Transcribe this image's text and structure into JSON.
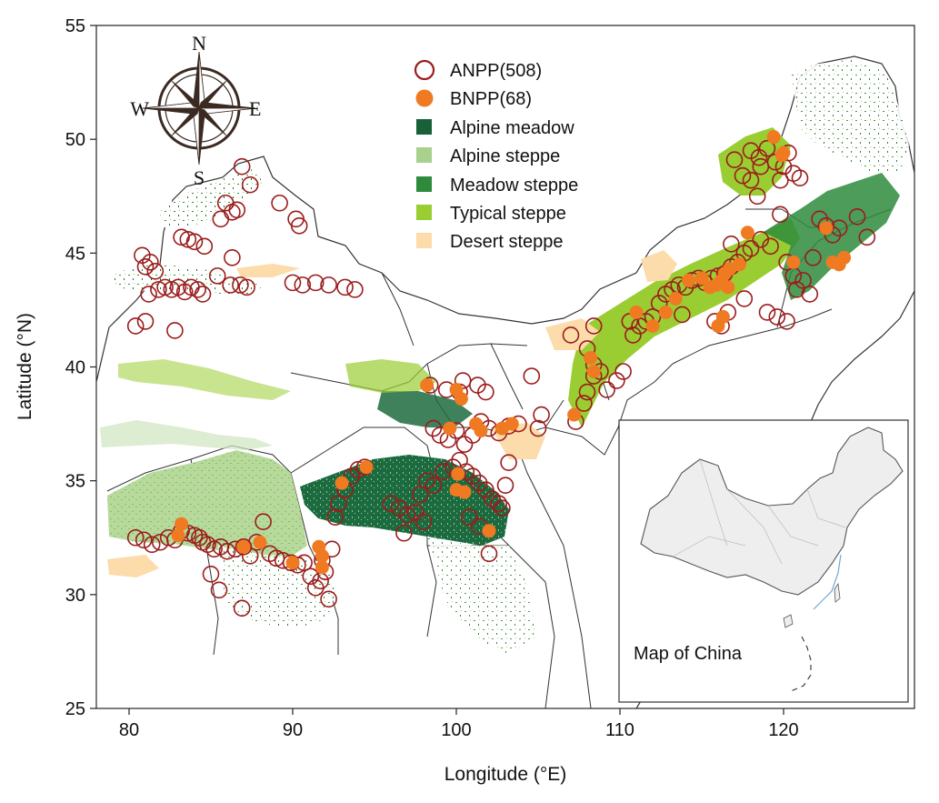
{
  "chart_data": {
    "type": "map",
    "xlabel": "Longitude (°E)",
    "ylabel": "Latitude (°N)",
    "xlim": [
      78,
      128
    ],
    "ylim": [
      25,
      55
    ],
    "xticks": [
      80,
      90,
      100,
      110,
      120
    ],
    "yticks": [
      25,
      30,
      35,
      40,
      45,
      50,
      55
    ],
    "legend": [
      {
        "label": "ANPP(508)",
        "marker": "open-circle",
        "color": "#9b1c1c"
      },
      {
        "label": "BNPP(68)",
        "marker": "filled-circle",
        "color": "#f07a22"
      },
      {
        "label": "Alpine meadow",
        "marker": "square",
        "color": "#17603a"
      },
      {
        "label": "Alpine steppe",
        "marker": "square",
        "color": "#a9d18e"
      },
      {
        "label": "Meadow steppe",
        "marker": "square",
        "color": "#2e8b3c"
      },
      {
        "label": "Typical steppe",
        "marker": "square",
        "color": "#9acd32"
      },
      {
        "label": "Desert steppe",
        "marker": "square",
        "color": "#fbdcaa"
      }
    ],
    "anpp_sites": [
      [
        80.4,
        41.8
      ],
      [
        80.8,
        44.9
      ],
      [
        81.0,
        44.4
      ],
      [
        81.3,
        44.6
      ],
      [
        81.6,
        44.2
      ],
      [
        81.2,
        43.2
      ],
      [
        81.8,
        43.4
      ],
      [
        82.2,
        43.5
      ],
      [
        82.6,
        43.4
      ],
      [
        83.0,
        43.5
      ],
      [
        83.4,
        43.3
      ],
      [
        83.8,
        43.5
      ],
      [
        84.2,
        43.4
      ],
      [
        84.5,
        43.2
      ],
      [
        82.8,
        41.6
      ],
      [
        81.0,
        42.0
      ],
      [
        83.2,
        45.7
      ],
      [
        83.6,
        45.6
      ],
      [
        84.0,
        45.5
      ],
      [
        84.6,
        45.3
      ],
      [
        85.4,
        44.0
      ],
      [
        86.2,
        43.6
      ],
      [
        86.8,
        43.6
      ],
      [
        87.2,
        43.5
      ],
      [
        86.3,
        44.8
      ],
      [
        85.6,
        46.5
      ],
      [
        85.9,
        47.2
      ],
      [
        86.3,
        46.8
      ],
      [
        86.6,
        46.9
      ],
      [
        86.9,
        48.8
      ],
      [
        87.4,
        48.0
      ],
      [
        89.2,
        47.2
      ],
      [
        90.2,
        46.5
      ],
      [
        90.4,
        46.2
      ],
      [
        90.0,
        43.7
      ],
      [
        90.6,
        43.6
      ],
      [
        91.4,
        43.7
      ],
      [
        92.2,
        43.6
      ],
      [
        93.2,
        43.5
      ],
      [
        93.8,
        43.4
      ],
      [
        80.4,
        32.5
      ],
      [
        80.9,
        32.4
      ],
      [
        81.4,
        32.2
      ],
      [
        81.9,
        32.3
      ],
      [
        82.4,
        32.5
      ],
      [
        82.8,
        32.4
      ],
      [
        83.2,
        32.8
      ],
      [
        83.6,
        32.7
      ],
      [
        84.0,
        32.6
      ],
      [
        84.3,
        32.5
      ],
      [
        84.5,
        32.3
      ],
      [
        84.8,
        32.2
      ],
      [
        85.2,
        32.0
      ],
      [
        85.6,
        32.1
      ],
      [
        86.0,
        31.9
      ],
      [
        86.5,
        32.0
      ],
      [
        87.0,
        32.1
      ],
      [
        87.4,
        31.7
      ],
      [
        87.8,
        32.3
      ],
      [
        88.2,
        33.2
      ],
      [
        88.6,
        31.8
      ],
      [
        89.0,
        31.6
      ],
      [
        89.4,
        31.5
      ],
      [
        89.9,
        31.4
      ],
      [
        90.3,
        31.3
      ],
      [
        90.7,
        31.4
      ],
      [
        91.1,
        30.8
      ],
      [
        91.4,
        30.3
      ],
      [
        91.7,
        30.6
      ],
      [
        92.0,
        31.0
      ],
      [
        92.2,
        29.8
      ],
      [
        91.8,
        31.5
      ],
      [
        92.4,
        32.0
      ],
      [
        92.6,
        33.4
      ],
      [
        92.8,
        34.0
      ],
      [
        93.2,
        34.6
      ],
      [
        93.6,
        35.2
      ],
      [
        94.0,
        35.5
      ],
      [
        94.4,
        35.6
      ],
      [
        85.0,
        30.9
      ],
      [
        85.5,
        30.2
      ],
      [
        86.9,
        29.4
      ],
      [
        98.4,
        39.2
      ],
      [
        99.4,
        39.0
      ],
      [
        100.2,
        38.9
      ],
      [
        100.4,
        39.4
      ],
      [
        101.3,
        39.2
      ],
      [
        101.8,
        38.9
      ],
      [
        98.6,
        37.3
      ],
      [
        99.0,
        37.0
      ],
      [
        99.5,
        36.8
      ],
      [
        100.0,
        37.2
      ],
      [
        100.5,
        36.6
      ],
      [
        101.0,
        37.0
      ],
      [
        101.5,
        37.6
      ],
      [
        102.0,
        37.3
      ],
      [
        102.6,
        37.1
      ],
      [
        103.2,
        37.4
      ],
      [
        103.8,
        37.5
      ],
      [
        104.6,
        39.6
      ],
      [
        98.2,
        35.0
      ],
      [
        98.6,
        34.8
      ],
      [
        99.2,
        35.4
      ],
      [
        99.8,
        35.6
      ],
      [
        100.2,
        35.9
      ],
      [
        100.6,
        35.4
      ],
      [
        101.0,
        35.2
      ],
      [
        101.4,
        34.9
      ],
      [
        101.8,
        34.6
      ],
      [
        102.2,
        34.2
      ],
      [
        102.6,
        34.0
      ],
      [
        103.0,
        34.8
      ],
      [
        96.0,
        34.0
      ],
      [
        96.5,
        33.8
      ],
      [
        97.0,
        33.5
      ],
      [
        97.5,
        33.6
      ],
      [
        98.0,
        33.2
      ],
      [
        96.8,
        32.7
      ],
      [
        97.8,
        34.4
      ],
      [
        100.8,
        33.4
      ],
      [
        101.4,
        33.0
      ],
      [
        102.0,
        31.8
      ],
      [
        102.8,
        33.8
      ],
      [
        103.2,
        35.8
      ],
      [
        105.2,
        37.9
      ],
      [
        105.0,
        37.3
      ],
      [
        107.3,
        37.6
      ],
      [
        107.8,
        38.4
      ],
      [
        108.0,
        38.9
      ],
      [
        108.4,
        39.6
      ],
      [
        108.8,
        39.8
      ],
      [
        109.2,
        39.0
      ],
      [
        108.4,
        40.1
      ],
      [
        108.0,
        40.8
      ],
      [
        108.4,
        41.8
      ],
      [
        107.0,
        41.4
      ],
      [
        109.8,
        39.4
      ],
      [
        110.2,
        39.8
      ],
      [
        110.8,
        41.4
      ],
      [
        111.2,
        41.8
      ],
      [
        111.6,
        42.0
      ],
      [
        112.0,
        42.2
      ],
      [
        112.4,
        42.8
      ],
      [
        112.8,
        43.2
      ],
      [
        113.2,
        43.4
      ],
      [
        113.6,
        43.6
      ],
      [
        114.0,
        43.5
      ],
      [
        114.4,
        43.8
      ],
      [
        114.8,
        43.9
      ],
      [
        115.2,
        43.7
      ],
      [
        115.6,
        43.9
      ],
      [
        116.0,
        44.0
      ],
      [
        116.4,
        44.1
      ],
      [
        116.8,
        44.4
      ],
      [
        117.2,
        44.6
      ],
      [
        117.6,
        45.0
      ],
      [
        118.0,
        45.2
      ],
      [
        118.6,
        45.6
      ],
      [
        119.2,
        45.3
      ],
      [
        119.8,
        46.7
      ],
      [
        116.8,
        45.4
      ],
      [
        117.0,
        49.1
      ],
      [
        117.5,
        48.4
      ],
      [
        118.0,
        49.5
      ],
      [
        118.5,
        49.2
      ],
      [
        119.0,
        49.6
      ],
      [
        119.5,
        49.0
      ],
      [
        120.0,
        48.8
      ],
      [
        120.3,
        49.4
      ],
      [
        120.6,
        48.5
      ],
      [
        121.0,
        48.3
      ],
      [
        118.4,
        47.5
      ],
      [
        118.0,
        48.2
      ],
      [
        118.6,
        48.8
      ],
      [
        119.8,
        48.2
      ],
      [
        120.2,
        44.6
      ],
      [
        120.6,
        44.0
      ],
      [
        120.8,
        43.4
      ],
      [
        121.2,
        43.8
      ],
      [
        121.6,
        43.2
      ],
      [
        121.8,
        44.8
      ],
      [
        122.2,
        46.5
      ],
      [
        122.6,
        46.2
      ],
      [
        123.0,
        45.8
      ],
      [
        123.4,
        46.1
      ],
      [
        124.5,
        46.6
      ],
      [
        125.1,
        45.7
      ],
      [
        119.0,
        42.4
      ],
      [
        119.6,
        42.2
      ],
      [
        120.2,
        42.0
      ],
      [
        115.8,
        42.0
      ],
      [
        116.2,
        41.8
      ],
      [
        116.6,
        42.4
      ],
      [
        117.6,
        43.0
      ],
      [
        113.8,
        42.3
      ],
      [
        110.6,
        42.0
      ]
    ],
    "bnpp_sites": [
      [
        83.2,
        33.1
      ],
      [
        83.0,
        32.6
      ],
      [
        87.0,
        32.1
      ],
      [
        88.0,
        32.3
      ],
      [
        90.0,
        31.4
      ],
      [
        91.6,
        32.1
      ],
      [
        91.8,
        31.7
      ],
      [
        91.8,
        31.2
      ],
      [
        93.0,
        34.9
      ],
      [
        94.5,
        35.6
      ],
      [
        98.2,
        39.2
      ],
      [
        100.0,
        39.0
      ],
      [
        100.3,
        38.6
      ],
      [
        101.2,
        37.5
      ],
      [
        101.5,
        37.2
      ],
      [
        99.6,
        37.3
      ],
      [
        100.1,
        35.3
      ],
      [
        100.0,
        34.6
      ],
      [
        100.5,
        34.5
      ],
      [
        102.0,
        32.8
      ],
      [
        102.8,
        37.3
      ],
      [
        103.4,
        37.5
      ],
      [
        107.2,
        37.9
      ],
      [
        108.2,
        40.4
      ],
      [
        108.4,
        39.8
      ],
      [
        111.0,
        42.4
      ],
      [
        112.0,
        41.8
      ],
      [
        112.8,
        42.4
      ],
      [
        113.4,
        43.0
      ],
      [
        114.2,
        43.8
      ],
      [
        115.0,
        43.9
      ],
      [
        115.5,
        43.5
      ],
      [
        115.9,
        43.6
      ],
      [
        116.2,
        43.8
      ],
      [
        116.4,
        44.1
      ],
      [
        116.6,
        43.5
      ],
      [
        116.7,
        44.3
      ],
      [
        116.3,
        42.2
      ],
      [
        116.0,
        41.8
      ],
      [
        117.3,
        44.5
      ],
      [
        117.8,
        45.9
      ],
      [
        119.4,
        50.1
      ],
      [
        119.9,
        49.3
      ],
      [
        120.0,
        49.4
      ],
      [
        120.6,
        44.6
      ],
      [
        122.6,
        46.1
      ],
      [
        123.0,
        44.6
      ],
      [
        123.4,
        44.5
      ],
      [
        123.7,
        44.8
      ]
    ],
    "inset": {
      "title": "Map of China"
    },
    "compass": {
      "north": "N",
      "south": "S",
      "east": "E",
      "west": "W"
    }
  }
}
